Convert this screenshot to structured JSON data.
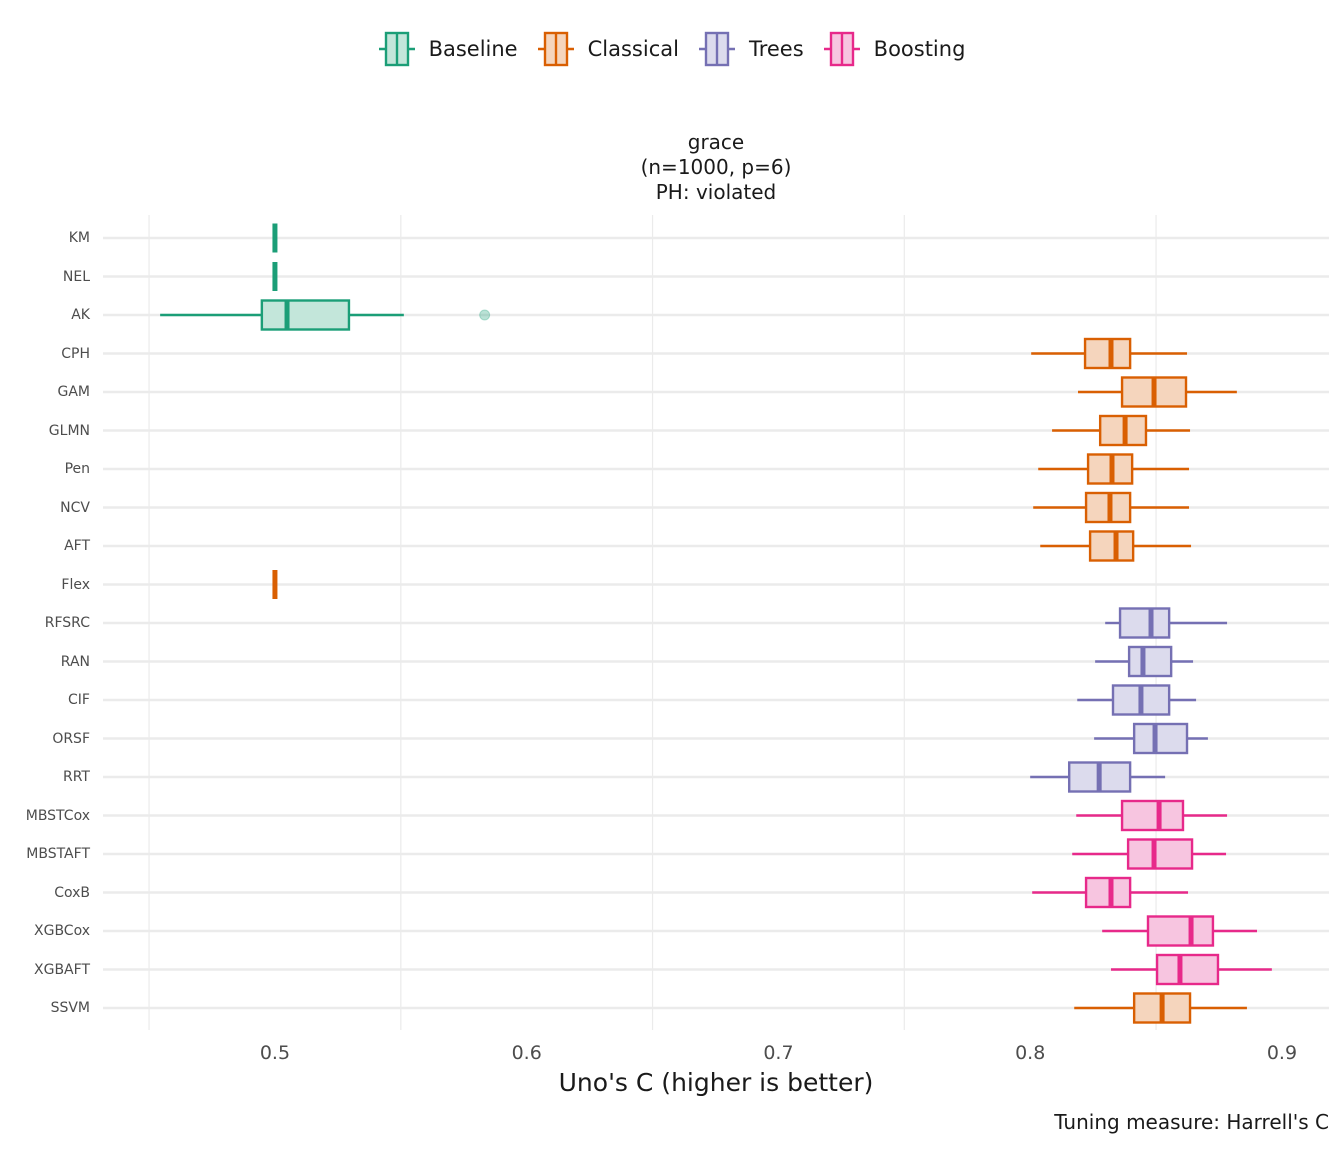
{
  "chart_data": {
    "type": "boxplot",
    "orientation": "horizontal",
    "strip_title": [
      "grace",
      "(n=1000, p=6)",
      "PH: violated"
    ],
    "xlabel": "Uno's C (higher is better)",
    "ylabel": "",
    "caption": "Tuning measure: Harrell's C",
    "xlim": [
      0.4317,
      0.9187
    ],
    "xticks": [
      0.5,
      0.6,
      0.7,
      0.8,
      0.9
    ],
    "xtick_labels": [
      "0.5",
      "0.6",
      "0.7",
      "0.8",
      "0.9"
    ],
    "minor_gridlines": [
      0.45,
      0.55,
      0.65,
      0.75,
      0.85
    ],
    "grid": true,
    "legend": {
      "position": "top",
      "entries": [
        {
          "name": "Baseline",
          "color": "#1b9e77"
        },
        {
          "name": "Classical",
          "color": "#d95f02"
        },
        {
          "name": "Trees",
          "color": "#7570b3"
        },
        {
          "name": "Boosting",
          "color": "#e7298a"
        }
      ]
    },
    "categories": [
      "KM",
      "NEL",
      "AK",
      "CPH",
      "GAM",
      "GLMN",
      "Pen",
      "NCV",
      "AFT",
      "Flex",
      "RFSRC",
      "RAN",
      "CIF",
      "ORSF",
      "RRT",
      "MBSTCox",
      "MBSTAFT",
      "CoxB",
      "XGBCox",
      "XGBAFT",
      "SSVM"
    ],
    "boxes": [
      {
        "name": "KM",
        "group": "Baseline",
        "lower": 0.5,
        "q1": 0.5,
        "median": 0.5,
        "q3": 0.5,
        "upper": 0.5,
        "outliers": []
      },
      {
        "name": "NEL",
        "group": "Baseline",
        "lower": 0.5,
        "q1": 0.5,
        "median": 0.5,
        "q3": 0.5,
        "upper": 0.5,
        "outliers": []
      },
      {
        "name": "AK",
        "group": "Baseline",
        "lower": 0.4544,
        "q1": 0.4948,
        "median": 0.5048,
        "q3": 0.5294,
        "upper": 0.5512,
        "outliers": [
          0.5833
        ]
      },
      {
        "name": "CPH",
        "group": "Classical",
        "lower": 0.8004,
        "q1": 0.8218,
        "median": 0.8321,
        "q3": 0.8397,
        "upper": 0.8623,
        "outliers": []
      },
      {
        "name": "GAM",
        "group": "Classical",
        "lower": 0.819,
        "q1": 0.8365,
        "median": 0.8492,
        "q3": 0.8619,
        "upper": 0.8821,
        "outliers": []
      },
      {
        "name": "GLMN",
        "group": "Classical",
        "lower": 0.8087,
        "q1": 0.8278,
        "median": 0.8377,
        "q3": 0.846,
        "upper": 0.8635,
        "outliers": []
      },
      {
        "name": "Pen",
        "group": "Classical",
        "lower": 0.8032,
        "q1": 0.823,
        "median": 0.8325,
        "q3": 0.8405,
        "upper": 0.8631,
        "outliers": []
      },
      {
        "name": "NCV",
        "group": "Classical",
        "lower": 0.8012,
        "q1": 0.8222,
        "median": 0.8317,
        "q3": 0.8397,
        "upper": 0.8631,
        "outliers": []
      },
      {
        "name": "AFT",
        "group": "Classical",
        "lower": 0.804,
        "q1": 0.8238,
        "median": 0.8341,
        "q3": 0.8409,
        "upper": 0.8639,
        "outliers": []
      },
      {
        "name": "Flex",
        "group": "Classical",
        "lower": 0.5,
        "q1": 0.5,
        "median": 0.5,
        "q3": 0.5,
        "upper": 0.5,
        "outliers": []
      },
      {
        "name": "RFSRC",
        "group": "Trees",
        "lower": 0.8298,
        "q1": 0.8357,
        "median": 0.848,
        "q3": 0.8552,
        "upper": 0.8782,
        "outliers": []
      },
      {
        "name": "RAN",
        "group": "Trees",
        "lower": 0.8258,
        "q1": 0.8393,
        "median": 0.8448,
        "q3": 0.856,
        "upper": 0.8647,
        "outliers": []
      },
      {
        "name": "CIF",
        "group": "Trees",
        "lower": 0.8187,
        "q1": 0.8329,
        "median": 0.844,
        "q3": 0.8552,
        "upper": 0.8659,
        "outliers": []
      },
      {
        "name": "ORSF",
        "group": "Trees",
        "lower": 0.8254,
        "q1": 0.8413,
        "median": 0.8496,
        "q3": 0.8623,
        "upper": 0.8706,
        "outliers": []
      },
      {
        "name": "RRT",
        "group": "Trees",
        "lower": 0.8,
        "q1": 0.8155,
        "median": 0.8274,
        "q3": 0.8397,
        "upper": 0.8536,
        "outliers": []
      },
      {
        "name": "MBSTCox",
        "group": "Boosting",
        "lower": 0.8183,
        "q1": 0.8365,
        "median": 0.8512,
        "q3": 0.8607,
        "upper": 0.8782,
        "outliers": []
      },
      {
        "name": "MBSTAFT",
        "group": "Boosting",
        "lower": 0.8167,
        "q1": 0.8389,
        "median": 0.8492,
        "q3": 0.8643,
        "upper": 0.8778,
        "outliers": []
      },
      {
        "name": "CoxB",
        "group": "Boosting",
        "lower": 0.8008,
        "q1": 0.8222,
        "median": 0.8321,
        "q3": 0.8397,
        "upper": 0.8627,
        "outliers": []
      },
      {
        "name": "XGBCox",
        "group": "Boosting",
        "lower": 0.8286,
        "q1": 0.8468,
        "median": 0.8639,
        "q3": 0.8726,
        "upper": 0.8901,
        "outliers": []
      },
      {
        "name": "XGBAFT",
        "group": "Boosting",
        "lower": 0.8321,
        "q1": 0.8504,
        "median": 0.8595,
        "q3": 0.8746,
        "upper": 0.896,
        "outliers": []
      },
      {
        "name": "SSVM",
        "group": "Classical",
        "lower": 0.8175,
        "q1": 0.8413,
        "median": 0.8524,
        "q3": 0.8635,
        "upper": 0.8861,
        "outliers": []
      }
    ],
    "fills": {
      "Baseline": "#c3e6da",
      "Classical": "#f5d5bd",
      "Trees": "#dcdbed",
      "Boosting": "#f7c5e0"
    }
  }
}
